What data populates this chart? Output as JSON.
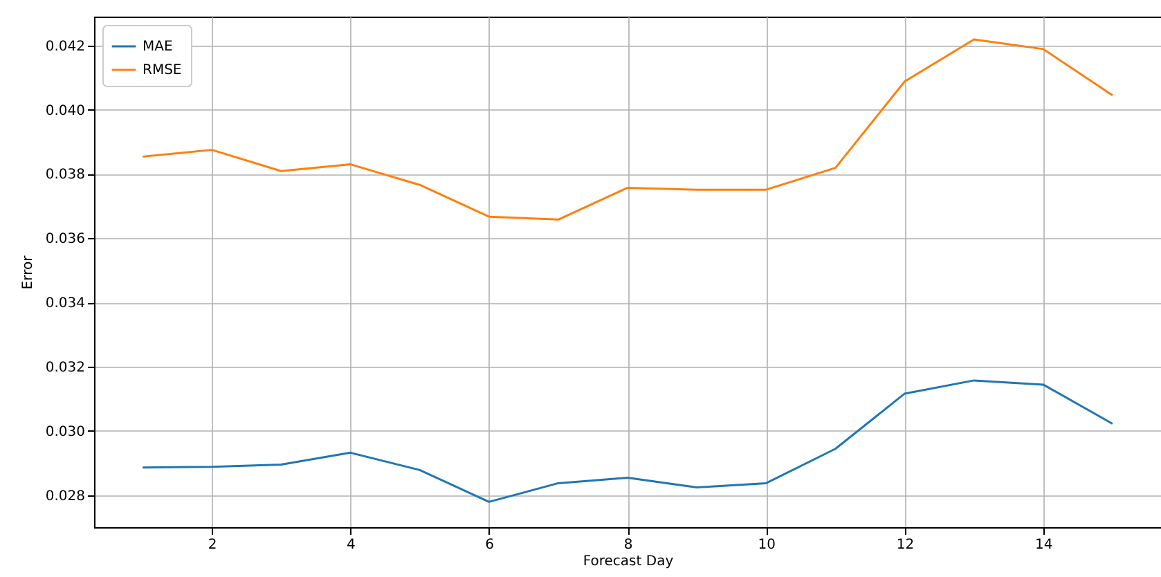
{
  "chart_data": {
    "type": "line",
    "xlabel": "Forecast Day",
    "ylabel": "Error",
    "x": [
      1,
      2,
      3,
      4,
      5,
      6,
      7,
      8,
      9,
      10,
      11,
      12,
      13,
      14,
      15
    ],
    "series": [
      {
        "name": "MAE",
        "color": "#1f77b4",
        "values": [
          0.02886,
          0.02888,
          0.02895,
          0.02932,
          0.02878,
          0.02779,
          0.02837,
          0.02854,
          0.02824,
          0.02837,
          0.02944,
          0.03116,
          0.03157,
          0.03144,
          0.03022
        ]
      },
      {
        "name": "RMSE",
        "color": "#ff7f0e",
        "values": [
          0.03854,
          0.03875,
          0.03809,
          0.0383,
          0.03766,
          0.03667,
          0.03658,
          0.03757,
          0.03751,
          0.03751,
          0.03819,
          0.04088,
          0.04219,
          0.04189,
          0.04045
        ]
      }
    ],
    "xlim": [
      0.3,
      15.7
    ],
    "xticks": [
      2,
      4,
      6,
      8,
      10,
      12,
      14
    ],
    "ylim": [
      0.027,
      0.0429
    ],
    "yticks": [
      {
        "value": 0.028,
        "label": "0.028"
      },
      {
        "value": 0.03,
        "label": "0.030"
      },
      {
        "value": 0.032,
        "label": "0.032"
      },
      {
        "value": 0.034,
        "label": "0.034"
      },
      {
        "value": 0.036,
        "label": "0.036"
      },
      {
        "value": 0.038,
        "label": "0.038"
      },
      {
        "value": 0.04,
        "label": "0.040"
      },
      {
        "value": 0.042,
        "label": "0.042"
      }
    ],
    "grid": true,
    "legend": "top left",
    "marker": "none",
    "line_style": "solid"
  }
}
